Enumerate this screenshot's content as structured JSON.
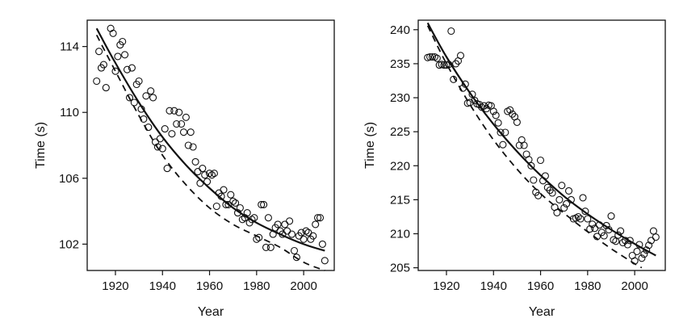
{
  "chart_data": [
    {
      "type": "scatter",
      "xlabel": "Year",
      "ylabel": "Time (s)",
      "xlim": [
        1908,
        2013
      ],
      "ylim": [
        100.4,
        115.6
      ],
      "xticks": [
        "1920",
        "1940",
        "1960",
        "1980",
        "2000"
      ],
      "yticks": [
        "102",
        "106",
        "110",
        "114"
      ],
      "grid": false,
      "series": [
        {
          "kind": "points",
          "marker": "open-circle",
          "x": [
            1912,
            1913,
            1914,
            1915,
            1916,
            1918,
            1919,
            1920,
            1921,
            1922,
            1923,
            1924,
            1925,
            1926,
            1927,
            1928,
            1929,
            1930,
            1931,
            1932,
            1933,
            1934,
            1935,
            1936,
            1937,
            1938,
            1939,
            1940,
            1941,
            1942,
            1943,
            1944,
            1945,
            1946,
            1947,
            1948,
            1949,
            1950,
            1951,
            1952,
            1953,
            1954,
            1955,
            1956,
            1957,
            1958,
            1959,
            1960,
            1961,
            1962,
            1963,
            1964,
            1965,
            1966,
            1967,
            1968,
            1969,
            1970,
            1971,
            1972,
            1973,
            1974,
            1975,
            1976,
            1977,
            1978,
            1979,
            1980,
            1981,
            1982,
            1983,
            1984,
            1985,
            1986,
            1987,
            1988,
            1989,
            1990,
            1991,
            1992,
            1993,
            1994,
            1995,
            1996,
            1997,
            1998,
            1999,
            2000,
            2001,
            2002,
            2003,
            2004,
            2005,
            2006,
            2007,
            2008,
            2009
          ],
          "y": [
            111.9,
            113.7,
            112.7,
            112.9,
            111.5,
            115.1,
            114.8,
            112.5,
            113.4,
            114.1,
            114.3,
            113.5,
            112.6,
            110.9,
            112.7,
            110.6,
            111.7,
            111.9,
            110.2,
            109.6,
            111.0,
            109.1,
            111.3,
            110.9,
            108.2,
            107.9,
            108.4,
            107.8,
            109.0,
            106.6,
            110.1,
            108.7,
            110.1,
            109.3,
            110.0,
            109.3,
            108.8,
            109.7,
            108.0,
            108.8,
            107.9,
            107.0,
            106.4,
            105.7,
            106.6,
            106.2,
            105.8,
            106.3,
            106.2,
            106.3,
            104.3,
            105.1,
            104.9,
            105.3,
            104.4,
            104.4,
            105.0,
            104.6,
            104.5,
            103.9,
            104.2,
            103.5,
            103.6,
            103.9,
            103.3,
            103.5,
            103.6,
            102.3,
            102.4,
            104.4,
            104.4,
            101.8,
            103.6,
            101.8,
            102.6,
            103.0,
            103.2,
            102.8,
            102.6,
            103.2,
            102.8,
            103.4,
            102.6,
            101.6,
            101.2,
            102.5,
            102.7,
            102.3,
            102.8,
            102.7,
            102.3,
            102.5,
            103.2,
            103.6,
            103.6,
            102.0,
            101.0
          ]
        },
        {
          "kind": "line",
          "style": "solid",
          "x": [
            1912,
            1920,
            1930,
            1940,
            1950,
            1960,
            1970,
            1980,
            1990,
            2000,
            2009
          ],
          "y": [
            115.1,
            113.0,
            110.6,
            108.5,
            106.8,
            105.4,
            104.2,
            103.3,
            102.6,
            102.0,
            101.6
          ]
        },
        {
          "kind": "line",
          "style": "dashed",
          "x": [
            1912,
            1920,
            1930,
            1940,
            1950,
            1960,
            1970,
            1980,
            1990,
            2000,
            2009
          ],
          "y": [
            114.7,
            112.5,
            109.8,
            107.4,
            105.6,
            104.2,
            103.2,
            102.5,
            101.8,
            100.9,
            100.4
          ]
        }
      ]
    },
    {
      "type": "scatter",
      "xlabel": "Year",
      "ylabel": "Time (s)",
      "xlim": [
        1908,
        2013
      ],
      "ylim": [
        204.6,
        241.4
      ],
      "xticks": [
        "1920",
        "1940",
        "1960",
        "1980",
        "2000"
      ],
      "yticks": [
        "205",
        "210",
        "215",
        "220",
        "225",
        "230",
        "235",
        "240"
      ],
      "grid": false,
      "series": [
        {
          "kind": "points",
          "marker": "open-circle",
          "x": [
            1912,
            1913,
            1914,
            1915,
            1916,
            1917,
            1918,
            1919,
            1920,
            1921,
            1922,
            1923,
            1924,
            1925,
            1926,
            1927,
            1928,
            1929,
            1930,
            1931,
            1932,
            1933,
            1934,
            1935,
            1936,
            1937,
            1938,
            1939,
            1940,
            1941,
            1942,
            1943,
            1944,
            1945,
            1946,
            1947,
            1948,
            1949,
            1950,
            1951,
            1952,
            1953,
            1954,
            1955,
            1956,
            1957,
            1958,
            1959,
            1960,
            1961,
            1962,
            1963,
            1964,
            1965,
            1966,
            1967,
            1968,
            1969,
            1970,
            1971,
            1972,
            1973,
            1974,
            1975,
            1976,
            1977,
            1978,
            1979,
            1980,
            1981,
            1982,
            1983,
            1984,
            1985,
            1986,
            1987,
            1988,
            1989,
            1990,
            1991,
            1992,
            1993,
            1994,
            1995,
            1996,
            1997,
            1998,
            1999,
            2000,
            2001,
            2002,
            2003,
            2004,
            2005,
            2006,
            2007,
            2008,
            2009
          ],
          "y": [
            235.9,
            236.0,
            236.0,
            236.0,
            235.8,
            234.8,
            234.9,
            234.8,
            234.8,
            234.9,
            239.8,
            232.7,
            235.0,
            235.4,
            236.2,
            231.4,
            232.0,
            229.2,
            229.3,
            230.5,
            229.6,
            229.1,
            229.0,
            228.6,
            228.8,
            228.4,
            228.9,
            228.8,
            228.0,
            227.4,
            226.3,
            224.9,
            223.1,
            224.9,
            228.0,
            228.2,
            227.6,
            227.2,
            226.4,
            223.0,
            223.8,
            223.0,
            221.7,
            220.9,
            220.0,
            217.9,
            216.1,
            215.6,
            220.8,
            217.8,
            218.5,
            216.8,
            216.4,
            216.0,
            213.9,
            213.1,
            215.0,
            217.1,
            213.8,
            214.4,
            216.3,
            215.0,
            212.2,
            212.3,
            212.5,
            212.2,
            215.3,
            213.3,
            212.2,
            210.7,
            211.4,
            210.8,
            209.6,
            211.3,
            210.2,
            209.7,
            211.2,
            210.6,
            212.6,
            209.1,
            208.9,
            209.8,
            210.4,
            208.7,
            209.0,
            208.4,
            209.0,
            206.8,
            206.0,
            207.4,
            208.4,
            206.4,
            207.0,
            207.6,
            208.3,
            209.0,
            210.4,
            209.5
          ]
        },
        {
          "kind": "line",
          "style": "solid",
          "x": [
            1912,
            1920,
            1930,
            1940,
            1950,
            1960,
            1970,
            1980,
            1990,
            2000,
            2009
          ],
          "y": [
            241.0,
            236.0,
            230.7,
            226.1,
            222.1,
            218.6,
            215.5,
            212.9,
            210.6,
            208.5,
            206.8
          ]
        },
        {
          "kind": "line",
          "style": "dashed",
          "x": [
            1912,
            1920,
            1930,
            1940,
            1950,
            1960,
            1970,
            1980,
            1990,
            2000,
            2003
          ],
          "y": [
            240.6,
            235.0,
            229.0,
            223.8,
            219.5,
            215.9,
            213.0,
            210.3,
            207.8,
            205.6,
            205.0
          ]
        }
      ]
    }
  ]
}
